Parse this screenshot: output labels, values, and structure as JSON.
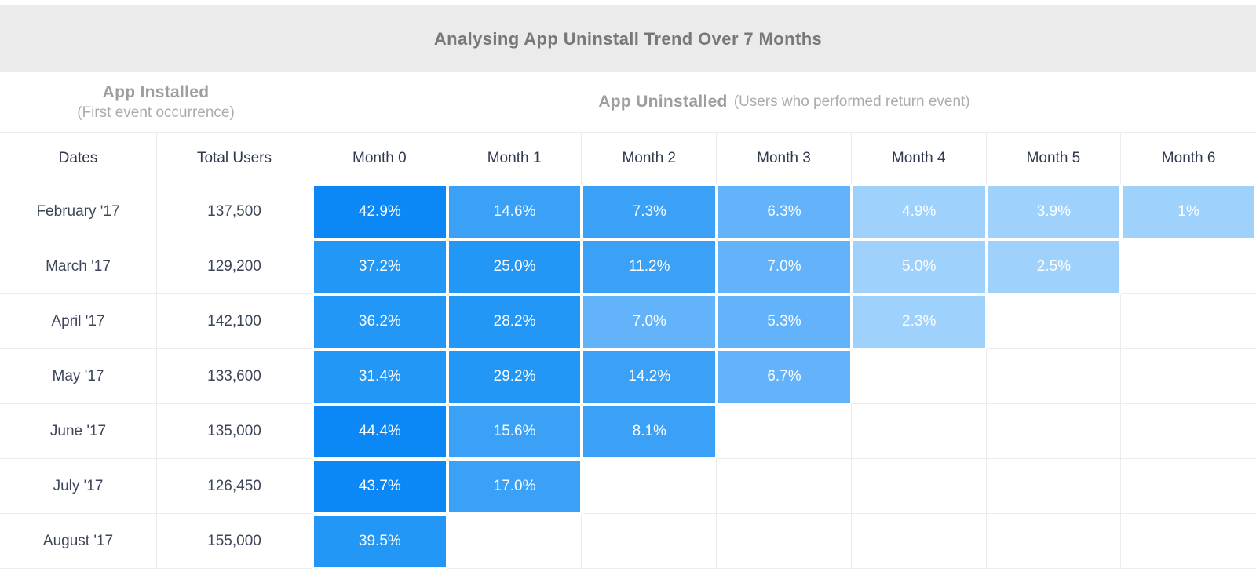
{
  "title": "Analysing App Uninstall Trend Over 7 Months",
  "sections": {
    "installed_title": "App Installed",
    "installed_subtitle": "(First event occurrence)",
    "uninstalled_title": "App Uninstalled",
    "uninstalled_subtitle": "(Users who performed return event)"
  },
  "columns": [
    "Dates",
    "Total Users",
    "Month 0",
    "Month 1",
    "Month 2",
    "Month 3",
    "Month 4",
    "Month 5",
    "Month 6"
  ],
  "palette": {
    "level1": "#0b88f6",
    "level2": "#2397f6",
    "level3": "#3ba1f7",
    "level4": "#62b3f9",
    "level5": "#9ed1fb"
  },
  "colors": {
    "title_bar_bg": "#ebebeb",
    "title_text": "#77787a",
    "section_text": "#9d9ea1",
    "header_text": "#2f3950",
    "body_text": "#3d4659",
    "gridline": "#ececee",
    "cell_text": "#ffffff"
  },
  "rows": [
    {
      "date": "February '17",
      "total_users": "137,500",
      "cells": [
        {
          "text": "42.9%",
          "level": 1
        },
        {
          "text": "14.6%",
          "level": 3
        },
        {
          "text": "7.3%",
          "level": 3
        },
        {
          "text": "6.3%",
          "level": 4
        },
        {
          "text": "4.9%",
          "level": 5
        },
        {
          "text": "3.9%",
          "level": 5
        },
        {
          "text": "1%",
          "level": 5
        }
      ]
    },
    {
      "date": "March '17",
      "total_users": "129,200",
      "cells": [
        {
          "text": "37.2%",
          "level": 2
        },
        {
          "text": "25.0%",
          "level": 2
        },
        {
          "text": "11.2%",
          "level": 3
        },
        {
          "text": "7.0%",
          "level": 4
        },
        {
          "text": "5.0%",
          "level": 5
        },
        {
          "text": "2.5%",
          "level": 5
        },
        null
      ]
    },
    {
      "date": "April '17",
      "total_users": "142,100",
      "cells": [
        {
          "text": "36.2%",
          "level": 2
        },
        {
          "text": "28.2%",
          "level": 2
        },
        {
          "text": "7.0%",
          "level": 4
        },
        {
          "text": "5.3%",
          "level": 4
        },
        {
          "text": "2.3%",
          "level": 5
        },
        null,
        null
      ]
    },
    {
      "date": "May '17",
      "total_users": "133,600",
      "cells": [
        {
          "text": "31.4%",
          "level": 2
        },
        {
          "text": "29.2%",
          "level": 2
        },
        {
          "text": "14.2%",
          "level": 3
        },
        {
          "text": "6.7%",
          "level": 4
        },
        null,
        null,
        null
      ]
    },
    {
      "date": "June '17",
      "total_users": "135,000",
      "cells": [
        {
          "text": "44.4%",
          "level": 1
        },
        {
          "text": "15.6%",
          "level": 3
        },
        {
          "text": "8.1%",
          "level": 3
        },
        null,
        null,
        null,
        null
      ]
    },
    {
      "date": "July '17",
      "total_users": "126,450",
      "cells": [
        {
          "text": "43.7%",
          "level": 1
        },
        {
          "text": "17.0%",
          "level": 3
        },
        null,
        null,
        null,
        null,
        null
      ]
    },
    {
      "date": "August '17",
      "total_users": "155,000",
      "cells": [
        {
          "text": "39.5%",
          "level": 2
        },
        null,
        null,
        null,
        null,
        null,
        null
      ]
    }
  ],
  "chart_data": {
    "type": "heatmap",
    "title": "Analysing App Uninstall Trend Over 7 Months",
    "x_categories": [
      "Month 0",
      "Month 1",
      "Month 2",
      "Month 3",
      "Month 4",
      "Month 5",
      "Month 6"
    ],
    "y_categories": [
      "February '17",
      "March '17",
      "April '17",
      "May '17",
      "June '17",
      "July '17",
      "August '17"
    ],
    "total_users": [
      137500,
      129200,
      142100,
      133600,
      135000,
      126450,
      155000
    ],
    "values_pct": [
      [
        42.9,
        14.6,
        7.3,
        6.3,
        4.9,
        3.9,
        1
      ],
      [
        37.2,
        25.0,
        11.2,
        7.0,
        5.0,
        2.5,
        null
      ],
      [
        36.2,
        28.2,
        7.0,
        5.3,
        2.3,
        null,
        null
      ],
      [
        31.4,
        29.2,
        14.2,
        6.7,
        null,
        null,
        null
      ],
      [
        44.4,
        15.6,
        8.1,
        null,
        null,
        null,
        null
      ],
      [
        43.7,
        17.0,
        null,
        null,
        null,
        null,
        null
      ],
      [
        39.5,
        null,
        null,
        null,
        null,
        null,
        null
      ]
    ],
    "color_scale": "darker blue = higher percentage",
    "legend_position": "none",
    "grid": true
  }
}
